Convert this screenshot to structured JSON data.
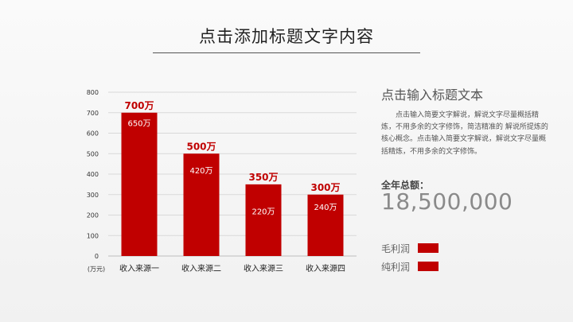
{
  "slide": {
    "title": "点击添加标题文字内容"
  },
  "panel": {
    "heading": "点击输入标题文本",
    "body": "点击输入简要文字解说，解说文字尽量概括精炼，不用多余的文字修饰，简洁精准的 解说所提炼的核心概念。点击输入简要文字解说，解说文字尽量概括精炼，不用多余的文字修饰。",
    "total_label": "全年总额：",
    "total_value": "18,500,000"
  },
  "legend": {
    "items": [
      {
        "label": "毛利润",
        "color": "#c00000"
      },
      {
        "label": "纯利润",
        "color": "#c00000"
      }
    ]
  },
  "chart_data": {
    "type": "bar",
    "categories": [
      "收入来源一",
      "收入来源二",
      "收入来源三",
      "收入来源四"
    ],
    "series": [
      {
        "values": [
          700,
          500,
          350,
          300
        ],
        "labels": [
          "700万",
          "500万",
          "350万",
          "300万"
        ]
      },
      {
        "values": [
          650,
          420,
          220,
          240
        ],
        "labels": [
          "650万",
          "420万",
          "220万",
          "240万"
        ]
      }
    ],
    "yticks": [
      0,
      100,
      200,
      300,
      400,
      500,
      600,
      700,
      800
    ],
    "ylim": [
      0,
      800
    ],
    "yunit": "(万元)",
    "grid": true,
    "bar_color": "#c00000"
  }
}
